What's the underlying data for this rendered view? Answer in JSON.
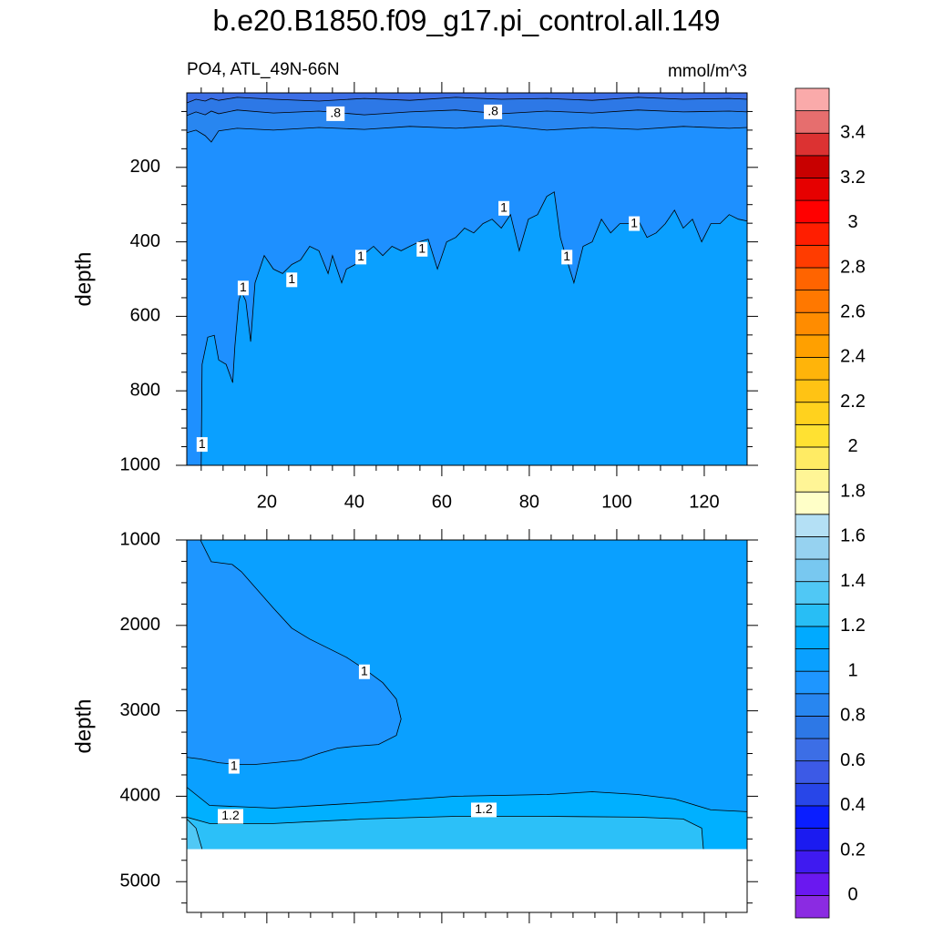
{
  "title": "b.e20.B1850.f09_g17.pi_control.all.149",
  "chart_data": [
    {
      "type": "contour",
      "subtitle_left": "PO4, ATL_49N-66N",
      "subtitle_right": "mmol/m^3",
      "ylabel": "depth",
      "xlim": [
        1.7,
        129.8
      ],
      "xticks": [
        20,
        40,
        60,
        80,
        100,
        120
      ],
      "xtick_labels": true,
      "ylim": [
        0,
        1000
      ],
      "yticks": [
        200,
        400,
        600,
        800,
        1000
      ],
      "y_reversed": true,
      "base_color": "#0aa0ff",
      "data_depth_max": 1000,
      "contours": [
        {
          "level": 1,
          "color": "#1e90ff",
          "x": [
            5.0,
            5.2,
            6.5,
            8.0,
            9.0,
            10.7,
            12.2,
            12.7,
            13.6,
            14.2,
            15.2,
            16.3,
            17.3,
            19.4,
            21.5,
            23.6,
            25.7,
            27.7,
            29.8,
            31.9,
            34.0,
            35.0,
            37.1,
            38.2,
            40.2,
            42.3,
            44.4,
            46.5,
            48.6,
            50.7,
            52.7,
            54.8,
            56.9,
            59.0,
            61.1,
            63.2,
            65.2,
            67.3,
            69.4,
            71.5,
            73.6,
            75.7,
            77.7,
            79.8,
            81.9,
            84.0,
            85.7,
            87.1,
            88.6,
            90.2,
            92.3,
            94.4,
            96.5,
            98.6,
            100.7,
            102.7,
            104.8,
            106.9,
            109.0,
            111.1,
            113.2,
            115.2,
            117.3,
            119.4,
            121.5,
            123.6,
            125.7,
            127.8,
            129.8
          ],
          "y": [
            1000,
            729,
            656,
            651,
            717,
            729,
            778,
            680,
            559,
            534,
            559,
            668,
            510,
            437,
            473,
            485,
            461,
            449,
            412,
            424,
            485,
            437,
            510,
            473,
            461,
            432,
            412,
            437,
            412,
            424,
            412,
            400,
            393,
            473,
            400,
            388,
            363,
            376,
            351,
            339,
            363,
            327,
            424,
            339,
            327,
            278,
            266,
            388,
            449,
            510,
            412,
            400,
            339,
            376,
            351,
            351,
            339,
            388,
            376,
            351,
            315,
            363,
            339,
            400,
            351,
            351,
            327,
            339,
            344
          ],
          "close_x": [
            129.8,
            1.7,
            1.7
          ],
          "close_y": [
            0,
            0,
            1000
          ],
          "label_x": [
            5.2,
            14.6,
            25.7,
            41.5,
            55.5,
            74.2,
            88.6,
            104.0
          ],
          "label_y": [
            944,
            524,
            502,
            441,
            420,
            310,
            441,
            351
          ]
        },
        {
          "level": 0.9,
          "color": "#2886f0",
          "x": [
            1.7,
            3.8,
            5.9,
            7.3,
            9.0,
            13.2,
            21.5,
            31.9,
            42.3,
            52.7,
            63.2,
            73.6,
            84.0,
            94.4,
            104.8,
            115.2,
            125.7,
            129.8
          ],
          "y": [
            107,
            100,
            115,
            132,
            102,
            95,
            100,
            93,
            98,
            90,
            95,
            88,
            100,
            93,
            98,
            90,
            95,
            93
          ],
          "close_x": [
            129.8,
            1.7
          ],
          "close_y": [
            0,
            0
          ],
          "label_x": [],
          "label_y": []
        },
        {
          "level": {
            "value": 0.8,
            "label": ".8"
          },
          "color": "#2d78e6",
          "x": [
            1.7,
            3.8,
            5.9,
            7.3,
            9.0,
            13.2,
            21.5,
            31.9,
            42.3,
            52.7,
            63.2,
            73.6,
            84.0,
            94.4,
            104.8,
            115.2,
            125.7,
            129.8
          ],
          "y": [
            61,
            51,
            59,
            49,
            56,
            46,
            54,
            49,
            59,
            51,
            46,
            56,
            49,
            54,
            46,
            51,
            49,
            51
          ],
          "close_x": [
            129.8,
            1.7
          ],
          "close_y": [
            0,
            0
          ],
          "label_x": [
            35.7,
            71.7
          ],
          "label_y": [
            56,
            51
          ]
        },
        {
          "level": 0.7,
          "color": "#3c6ee6",
          "x": [
            1.7,
            3.8,
            5.9,
            7.3,
            9.0,
            13.2,
            21.5,
            31.9,
            42.3,
            52.7,
            63.2,
            73.6,
            84.0,
            94.4,
            104.8,
            115.2,
            125.7,
            129.8
          ],
          "y": [
            27,
            17,
            22,
            15,
            20,
            12,
            17,
            22,
            15,
            20,
            12,
            17,
            15,
            20,
            12,
            17,
            15,
            17
          ],
          "close_x": [
            129.8,
            1.7
          ],
          "close_y": [
            0,
            0
          ],
          "label_x": [],
          "label_y": []
        }
      ]
    },
    {
      "type": "contour",
      "ylabel": "depth",
      "xlim": [
        1.7,
        129.8
      ],
      "xticks": [
        20,
        40,
        60,
        80,
        100,
        120
      ],
      "xtick_labels": false,
      "ylim": [
        1000,
        5360
      ],
      "yticks": [
        1000,
        2000,
        3000,
        4000,
        5000
      ],
      "y_reversed": true,
      "base_color": "#0aa0ff",
      "data_depth_max": 4618,
      "contours": [
        {
          "level": 1,
          "color": "#1e96ff",
          "x": [
            4.8,
            7.3,
            12.1,
            14.2,
            17.3,
            21.5,
            25.7,
            29.8,
            34.0,
            38.2,
            42.3,
            46.5,
            49.6,
            50.7,
            49.6,
            45.5,
            40.2,
            36.1,
            31.9,
            27.7,
            21.5,
            17.3,
            13.2,
            9.0,
            4.8,
            1.7
          ],
          "y": [
            1000,
            1255,
            1287,
            1372,
            1553,
            1798,
            2032,
            2160,
            2266,
            2373,
            2511,
            2670,
            2862,
            3096,
            3288,
            3394,
            3415,
            3437,
            3500,
            3575,
            3607,
            3628,
            3628,
            3607,
            3564,
            3543
          ],
          "close_x": [
            1.7
          ],
          "close_y": [
            1000
          ],
          "label_x": [
            12.5,
            42.3
          ],
          "label_y": [
            3650,
            2543
          ]
        },
        {
          "level": 1.1,
          "color": "#00b0ff",
          "x": [
            1.7,
            6.9,
            21.5,
            42.3,
            63.2,
            84.0,
            94.4,
            104.8,
            113.2,
            121.5,
            129.8
          ],
          "y": [
            3894,
            4107,
            4139,
            4075,
            4000,
            3979,
            3947,
            3979,
            4032,
            4160,
            4181
          ],
          "close_x": [
            129.8,
            1.7
          ],
          "close_y": [
            4618,
            4618
          ],
          "label_x": [],
          "label_y": []
        },
        {
          "level": 1.2,
          "color": "#2cc0f8",
          "x": [
            1.7,
            6.9,
            21.5,
            42.3,
            63.2,
            84.0,
            104.8,
            115.2,
            119.4,
            119.8
          ],
          "y": [
            4245,
            4320,
            4320,
            4266,
            4235,
            4235,
            4245,
            4266,
            4373,
            4618
          ],
          "close_x": [
            1.7
          ],
          "close_y": [
            4618
          ],
          "label_x": [
            11.7,
            69.6
          ],
          "label_y": [
            4235,
            4160
          ]
        },
        {
          "level": 1.3,
          "color": "#50c8f5",
          "x": [
            1.7,
            3.8,
            5.2
          ],
          "y": [
            4266,
            4373,
            4618
          ],
          "close_x": [
            1.7
          ],
          "close_y": [
            4618
          ],
          "label_x": [],
          "label_y": []
        }
      ]
    }
  ],
  "colorbar": {
    "levels": [
      0,
      0.1,
      0.2,
      0.3,
      0.4,
      0.5,
      0.6,
      0.7,
      0.8,
      0.9,
      1,
      1.1,
      1.2,
      1.3,
      1.4,
      1.5,
      1.6,
      1.7,
      1.8,
      1.9,
      2,
      2.1,
      2.2,
      2.3,
      2.4,
      2.5,
      2.6,
      2.7,
      2.8,
      2.9,
      3,
      3.1,
      3.2,
      3.3,
      3.4,
      3.5
    ],
    "colors": [
      "#8b2be2",
      "#6a18f0",
      "#3f1af0",
      "#1b1bf0",
      "#0a1eff",
      "#2846e8",
      "#3c5ae6",
      "#3c6ee6",
      "#2d78e6",
      "#2886f0",
      "#1e96ff",
      "#0aa0ff",
      "#00aaff",
      "#28bef5",
      "#50c8f5",
      "#78c8f0",
      "#96d2f0",
      "#b4e0f5",
      "#ffffc8",
      "#fff596",
      "#ffeb64",
      "#ffe132",
      "#ffd21e",
      "#ffc314",
      "#ffb40a",
      "#ffa000",
      "#ff8c00",
      "#ff7800",
      "#ff6400",
      "#ff3c00",
      "#ff1e00",
      "#ff0000",
      "#e60000",
      "#c80000",
      "#dc3232",
      "#e66e6e",
      "#faaaaa"
    ],
    "ticks": [
      0,
      0.2,
      0.4,
      0.6,
      0.8,
      1,
      1.2,
      1.4,
      1.6,
      1.8,
      2,
      2.2,
      2.4,
      2.6,
      2.8,
      3,
      3.2,
      3.4
    ]
  }
}
